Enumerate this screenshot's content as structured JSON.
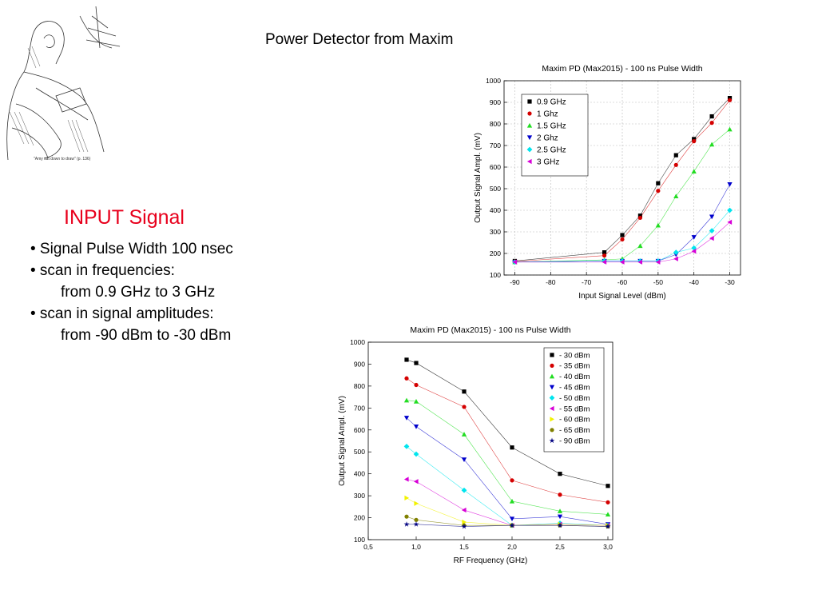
{
  "slide": {
    "title": "Power Detector from Maxim",
    "illustration_caption": "\"Amy sat down to draw\" (p. 136)",
    "input_heading": "INPUT Signal",
    "bullets": [
      {
        "text": "• Signal Pulse Width 100 nsec"
      },
      {
        "text": "• scan in frequencies:"
      },
      {
        "text": "from 0.9 GHz  to 3 GHz",
        "sub": true
      },
      {
        "text": "• scan in signal amplitudes:"
      },
      {
        "text": "from -90 dBm to -30 dBm",
        "sub": true
      }
    ]
  },
  "chart_data": [
    {
      "type": "line",
      "title": "Maxim PD (Max2015) - 100 ns Pulse Width",
      "xlabel": "Input Signal Level (dBm)",
      "ylabel": "Output Signal  Ampl. (mV)",
      "xlim": [
        -93,
        -27
      ],
      "ylim": [
        100,
        1000
      ],
      "xticks": [
        -90,
        -80,
        -70,
        -60,
        -50,
        -40,
        -30
      ],
      "yticks": [
        100,
        200,
        300,
        400,
        500,
        600,
        700,
        800,
        900,
        1000
      ],
      "grid": true,
      "legend": "top-left",
      "x": [
        -90,
        -65,
        -60,
        -55,
        -50,
        -45,
        -40,
        -35,
        -30
      ],
      "series": [
        {
          "name": "0.9 GHz",
          "color": "#000000",
          "marker": "square",
          "values": [
            165,
            205,
            285,
            375,
            525,
            655,
            730,
            835,
            920
          ]
        },
        {
          "name": "1 Ghz",
          "color": "#d40000",
          "marker": "circle",
          "values": [
            163,
            190,
            265,
            365,
            490,
            610,
            720,
            805,
            910
          ]
        },
        {
          "name": "1.5 GHz",
          "color": "#22dd22",
          "marker": "triangle-up",
          "values": [
            160,
            170,
            175,
            235,
            330,
            465,
            580,
            705,
            775
          ]
        },
        {
          "name": "2 Ghz",
          "color": "#0000cc",
          "marker": "triangle-down",
          "values": [
            160,
            165,
            165,
            165,
            165,
            195,
            275,
            370,
            520
          ]
        },
        {
          "name": "2.5 GHz",
          "color": "#00e5ee",
          "marker": "diamond",
          "values": [
            160,
            165,
            165,
            165,
            165,
            205,
            225,
            305,
            400
          ]
        },
        {
          "name": "3 GHz",
          "color": "#d700d7",
          "marker": "triangle-left",
          "values": [
            160,
            160,
            160,
            160,
            160,
            175,
            210,
            270,
            345
          ]
        }
      ]
    },
    {
      "type": "line",
      "title": "Maxim PD (Max2015) - 100 ns Pulse Width",
      "xlabel": "RF Frequency (GHz)",
      "ylabel": "Output Signal Ampl. (mV)",
      "xlim": [
        0.5,
        3.05
      ],
      "ylim": [
        100,
        1000
      ],
      "xticks": [
        0.5,
        1.0,
        1.5,
        2.0,
        2.5,
        3.0
      ],
      "xtick_labels": [
        "0,5",
        "1,0",
        "1,5",
        "2,0",
        "2,5",
        "3,0"
      ],
      "yticks": [
        100,
        200,
        300,
        400,
        500,
        600,
        700,
        800,
        900,
        1000
      ],
      "grid": false,
      "legend": "top-right",
      "x": [
        0.9,
        1.0,
        1.5,
        2.0,
        2.5,
        3.0
      ],
      "series": [
        {
          "name": "- 30 dBm",
          "color": "#000000",
          "marker": "square",
          "values": [
            920,
            905,
            775,
            520,
            400,
            345
          ]
        },
        {
          "name": "- 35 dBm",
          "color": "#d40000",
          "marker": "circle",
          "values": [
            835,
            805,
            705,
            370,
            305,
            270
          ]
        },
        {
          "name": "- 40 dBm",
          "color": "#22dd22",
          "marker": "triangle-up",
          "values": [
            735,
            730,
            580,
            275,
            230,
            215
          ]
        },
        {
          "name": "- 45 dBm",
          "color": "#0000cc",
          "marker": "triangle-down",
          "values": [
            655,
            615,
            465,
            195,
            205,
            170
          ]
        },
        {
          "name": "- 50 dBm",
          "color": "#00e5ee",
          "marker": "diamond",
          "values": [
            525,
            490,
            325,
            165,
            175,
            165
          ]
        },
        {
          "name": "- 55 dBm",
          "color": "#d700d7",
          "marker": "triangle-left",
          "values": [
            375,
            365,
            235,
            165,
            170,
            165
          ]
        },
        {
          "name": "- 60 dBm",
          "color": "#f2f200",
          "marker": "triangle-right",
          "values": [
            290,
            265,
            180,
            165,
            170,
            165
          ]
        },
        {
          "name": "- 65 dBm",
          "color": "#808000",
          "marker": "circle",
          "values": [
            205,
            190,
            165,
            165,
            165,
            160
          ]
        },
        {
          "name": "- 90 dBm",
          "color": "#000080",
          "marker": "star",
          "values": [
            170,
            170,
            160,
            165,
            165,
            160
          ]
        }
      ]
    }
  ]
}
